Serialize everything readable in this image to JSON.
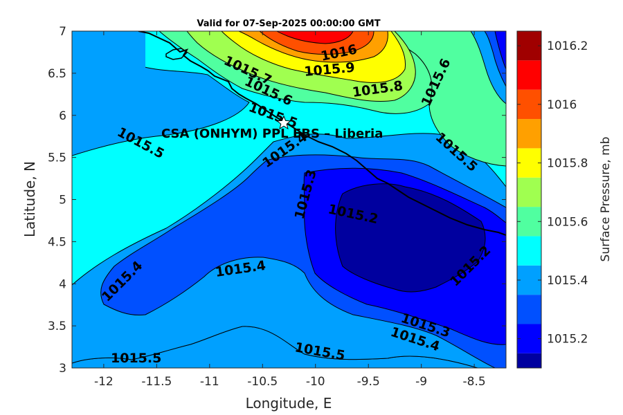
{
  "title": "Valid for 07-Sep-2025 00:00:00 GMT",
  "site_label": "CSA (ONHYM) PPL EBS  – Liberia",
  "x_axis": {
    "label": "Longitude, E",
    "range": [
      -12.3,
      -8.2
    ],
    "ticks": [
      -12,
      -11.5,
      -11,
      -10.5,
      -10,
      -9.5,
      -9,
      -8.5
    ],
    "tick_labels": [
      "-12",
      "-11.5",
      "-11",
      "-10.5",
      "-10",
      "-9.5",
      "-9",
      "-8.5"
    ]
  },
  "y_axis": {
    "label": "Latitude, N",
    "range": [
      3,
      7
    ],
    "ticks": [
      3,
      3.5,
      4,
      4.5,
      5,
      5.5,
      6,
      6.5,
      7
    ],
    "tick_labels": [
      "3",
      "3.5",
      "4",
      "4.5",
      "5",
      "5.5",
      "6",
      "6.5",
      "7"
    ]
  },
  "colorbar": {
    "label": "Surface Pressure, mb",
    "range": [
      1015.1,
      1016.25
    ],
    "tick_values": [
      1015.2,
      1015.4,
      1015.6,
      1015.8,
      1016,
      1016.2
    ],
    "tick_labels": [
      "1015.2",
      "1015.4",
      "1015.6",
      "1015.8",
      "1016",
      "1016.2"
    ],
    "levels": [
      {
        "value": 1015.1,
        "color": "#00009f"
      },
      {
        "value": 1015.2,
        "color": "#0000ff"
      },
      {
        "value": 1015.3,
        "color": "#0050ff"
      },
      {
        "value": 1015.4,
        "color": "#00a0ff"
      },
      {
        "value": 1015.5,
        "color": "#00ffff"
      },
      {
        "value": 1015.6,
        "color": "#50ffa0"
      },
      {
        "value": 1015.7,
        "color": "#a0ff50"
      },
      {
        "value": 1015.8,
        "color": "#ffff00"
      },
      {
        "value": 1015.9,
        "color": "#ffa000"
      },
      {
        "value": 1016.0,
        "color": "#ff5000"
      },
      {
        "value": 1016.1,
        "color": "#ff0000"
      },
      {
        "value": 1016.2,
        "color": "#a00000"
      }
    ]
  },
  "chart_data": {
    "type": "contour",
    "variable": "Surface Pressure, mb",
    "valid_time": "07-Sep-2025 00:00:00 GMT",
    "contour_labels": [
      {
        "text": "1016",
        "lon": -10.1,
        "lat": 6.6
      },
      {
        "text": "1015.9",
        "lon": -10.05,
        "lat": 6.48
      },
      {
        "text": "1015.8",
        "lon": -9.43,
        "lat": 6.29
      },
      {
        "text": "1015.7",
        "lon": -10.75,
        "lat": 6.45
      },
      {
        "text": "1015.6",
        "lon": -10.58,
        "lat": 6.22
      },
      {
        "text": "1015.6",
        "lon": -8.9,
        "lat": 6.38
      },
      {
        "text": "1015.5",
        "lon": -10.38,
        "lat": 6.02
      },
      {
        "text": "1015.5",
        "lon": -11.77,
        "lat": 5.66
      },
      {
        "text": "1015.5",
        "lon": -8.73,
        "lat": 5.52
      },
      {
        "text": "1015.5",
        "lon": -11.7,
        "lat": 3.13
      },
      {
        "text": "1015.5",
        "lon": -10.0,
        "lat": 3.18
      },
      {
        "text": "1015.4",
        "lon": -10.2,
        "lat": 5.6
      },
      {
        "text": "1015.4",
        "lon": -11.85,
        "lat": 3.95
      },
      {
        "text": "1015.4",
        "lon": -10.6,
        "lat": 4.18
      },
      {
        "text": "1015.4",
        "lon": -9.0,
        "lat": 3.38
      },
      {
        "text": "1015.3",
        "lon": -9.98,
        "lat": 5.08
      },
      {
        "text": "1015.3",
        "lon": -8.98,
        "lat": 3.52
      },
      {
        "text": "1015.2",
        "lon": -9.5,
        "lat": 4.82
      },
      {
        "text": "1015.2",
        "lon": -8.6,
        "lat": 4.17
      }
    ],
    "site_marker": {
      "lon": -10.3,
      "lat": 5.92
    }
  }
}
